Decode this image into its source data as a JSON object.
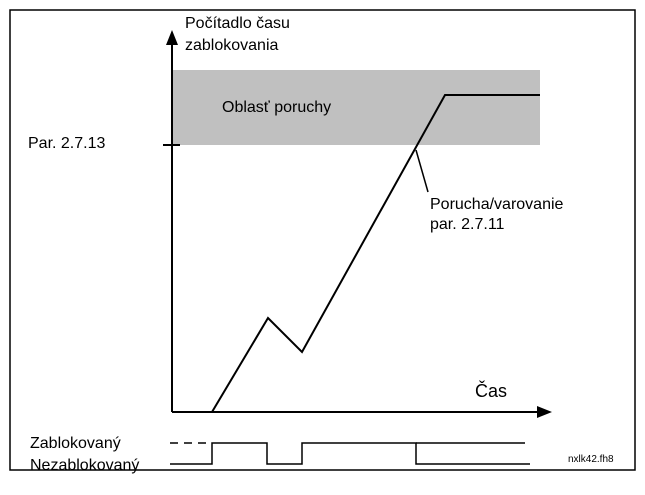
{
  "axis": {
    "y_label": [
      "Počítadlo času",
      "zablokovania"
    ],
    "x_label": "Čas",
    "threshold": "Par. 2.7.13"
  },
  "region": "Oblasť poruchy",
  "annotation": [
    "Porucha/varovanie",
    "par. 2.7.11"
  ],
  "signal": {
    "high": "Zablokovaný",
    "low": "Nezablokovaný"
  },
  "file_id": "nxlk42.fh8"
}
